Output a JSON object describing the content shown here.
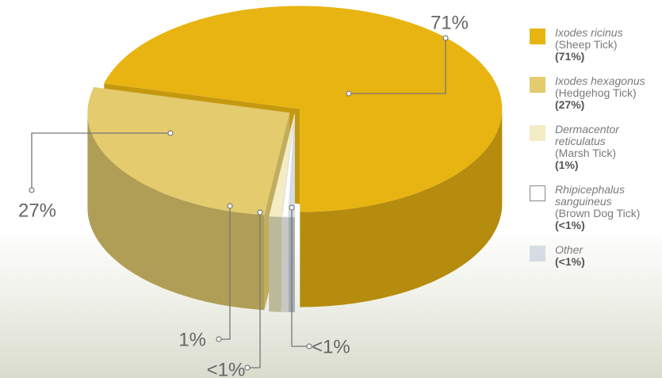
{
  "chart_data": {
    "type": "pie",
    "categories": [
      "Ixodes ricinus",
      "Ixodes hexagonus",
      "Dermacentor reticulatus",
      "Rhipicephalus sanguineus",
      "Other"
    ],
    "common_names": [
      "(Sheep Tick)",
      "(Hedgehog Tick)",
      "(Marsh Tick)",
      "(Brown Dog Tick)",
      null
    ],
    "legend_values": [
      "(71%)",
      "(27%)",
      "(1%)",
      "(<1%)",
      "(<1%)"
    ],
    "values": [
      71,
      27,
      1,
      0.5,
      0.5
    ],
    "value_labels": [
      "71%",
      "27%",
      "1%",
      "<1%",
      "<1%"
    ],
    "colors": [
      "#e8b412",
      "#e3cb6e",
      "#f3ecc5",
      "#ffffff",
      "#d3dde3"
    ]
  }
}
